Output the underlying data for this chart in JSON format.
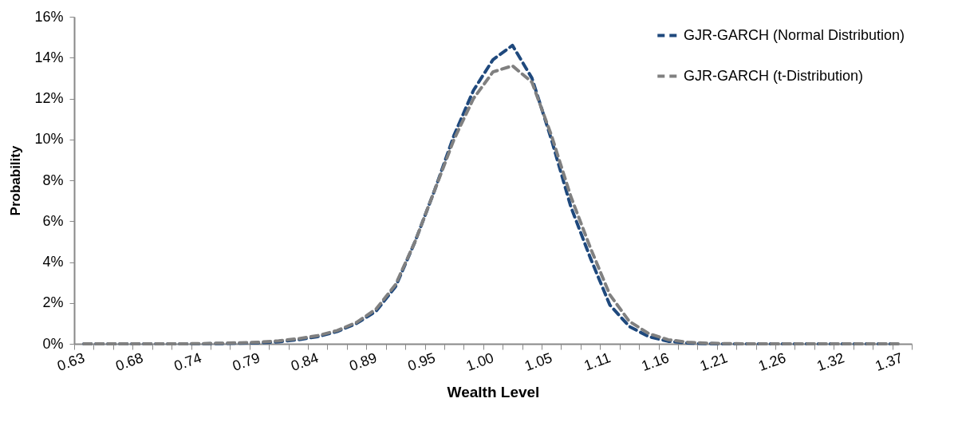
{
  "chart_data": {
    "type": "line",
    "xlabel": "Wealth Level",
    "ylabel": "Probability",
    "categories": [
      "0.63",
      null,
      null,
      "0.68",
      null,
      null,
      "0.74",
      null,
      null,
      "0.79",
      null,
      null,
      "0.84",
      null,
      null,
      "0.89",
      null,
      null,
      "0.95",
      null,
      null,
      "1.00",
      null,
      null,
      "1.05",
      null,
      null,
      "1.11",
      null,
      null,
      "1.16",
      null,
      null,
      "1.21",
      null,
      null,
      "1.26",
      null,
      null,
      "1.32",
      null,
      null,
      "1.37"
    ],
    "series": [
      {
        "name": "GJR-GARCH (Normal Distribution)",
        "color": "#1f497d",
        "values": [
          0,
          0,
          0,
          0,
          0,
          0,
          0,
          0.01,
          0.03,
          0.05,
          0.1,
          0.2,
          0.35,
          0.6,
          1.0,
          1.6,
          2.8,
          5.0,
          7.5,
          10.2,
          12.4,
          13.9,
          14.6,
          13.0,
          10.0,
          6.7,
          4.2,
          1.9,
          0.85,
          0.35,
          0.12,
          0.04,
          0.01,
          0,
          0,
          0,
          0,
          0,
          0,
          0,
          0,
          0,
          0
        ]
      },
      {
        "name": "GJR-GARCH (t-Distribution)",
        "color": "#808080",
        "values": [
          0,
          0,
          0,
          0,
          0,
          0,
          0.01,
          0.03,
          0.05,
          0.08,
          0.15,
          0.25,
          0.4,
          0.65,
          1.05,
          1.7,
          2.9,
          5.0,
          7.5,
          10.0,
          12.0,
          13.3,
          13.6,
          12.8,
          10.2,
          7.2,
          4.7,
          2.4,
          1.1,
          0.5,
          0.2,
          0.08,
          0.03,
          0.01,
          0,
          0,
          0,
          0,
          0,
          0,
          0,
          0,
          0
        ]
      }
    ],
    "ylim": [
      0,
      16
    ],
    "yticks": [
      {
        "value": 0,
        "label": "0%"
      },
      {
        "value": 2,
        "label": "2%"
      },
      {
        "value": 4,
        "label": "4%"
      },
      {
        "value": 6,
        "label": "6%"
      },
      {
        "value": 8,
        "label": "8%"
      },
      {
        "value": 10,
        "label": "10%"
      },
      {
        "value": 12,
        "label": "12%"
      },
      {
        "value": 14,
        "label": "14%"
      },
      {
        "value": 16,
        "label": "16%"
      }
    ],
    "grid": false,
    "legend": "top right",
    "line_style": "dashed",
    "marker": "none"
  }
}
